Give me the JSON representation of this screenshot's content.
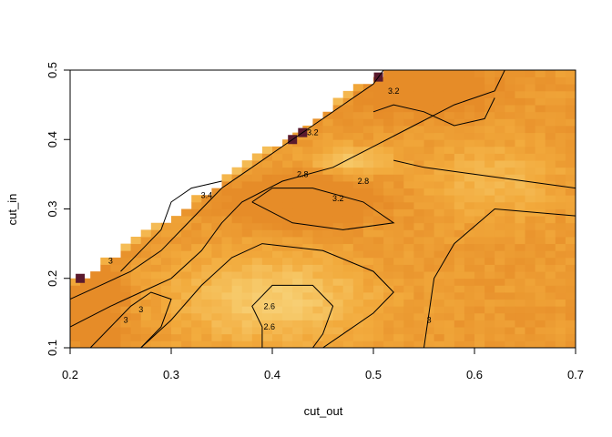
{
  "chart_data": {
    "type": "heatmap",
    "title": "",
    "xlabel": "cut_out",
    "ylabel": "cut_in",
    "xlim": [
      0.2,
      0.7
    ],
    "ylim": [
      0.1,
      0.5
    ],
    "xticks": [
      "0.2",
      "0.3",
      "0.4",
      "0.5",
      "0.6",
      "0.7"
    ],
    "yticks": [
      "0.1",
      "0.2",
      "0.3",
      "0.4",
      "0.5"
    ],
    "grid": false,
    "colormap": "heat (light yellow = low, orange/dark red = high)",
    "colors": {
      "low": "#fff7c2",
      "mid": "#f8d58c",
      "high": "#f2a93b",
      "peak": "#5a1a2e"
    },
    "contour_labels": [
      {
        "text": "3.2",
        "x": 0.52,
        "y": 0.47
      },
      {
        "text": "3.2",
        "x": 0.44,
        "y": 0.41
      },
      {
        "text": "2.8",
        "x": 0.43,
        "y": 0.35
      },
      {
        "text": "2.8",
        "x": 0.49,
        "y": 0.34
      },
      {
        "text": "3.2",
        "x": 0.465,
        "y": 0.315
      },
      {
        "text": "3.4",
        "x": 0.335,
        "y": 0.32
      },
      {
        "text": "3",
        "x": 0.27,
        "y": 0.155
      },
      {
        "text": "3",
        "x": 0.255,
        "y": 0.14
      },
      {
        "text": "2.6",
        "x": 0.397,
        "y": 0.16
      },
      {
        "text": "2.6",
        "x": 0.397,
        "y": 0.13
      },
      {
        "text": "3",
        "x": 0.555,
        "y": 0.14
      },
      {
        "text": "3",
        "x": 0.24,
        "y": 0.225
      }
    ],
    "note_values": "z levels shown by contour labels; estimated from colors"
  }
}
